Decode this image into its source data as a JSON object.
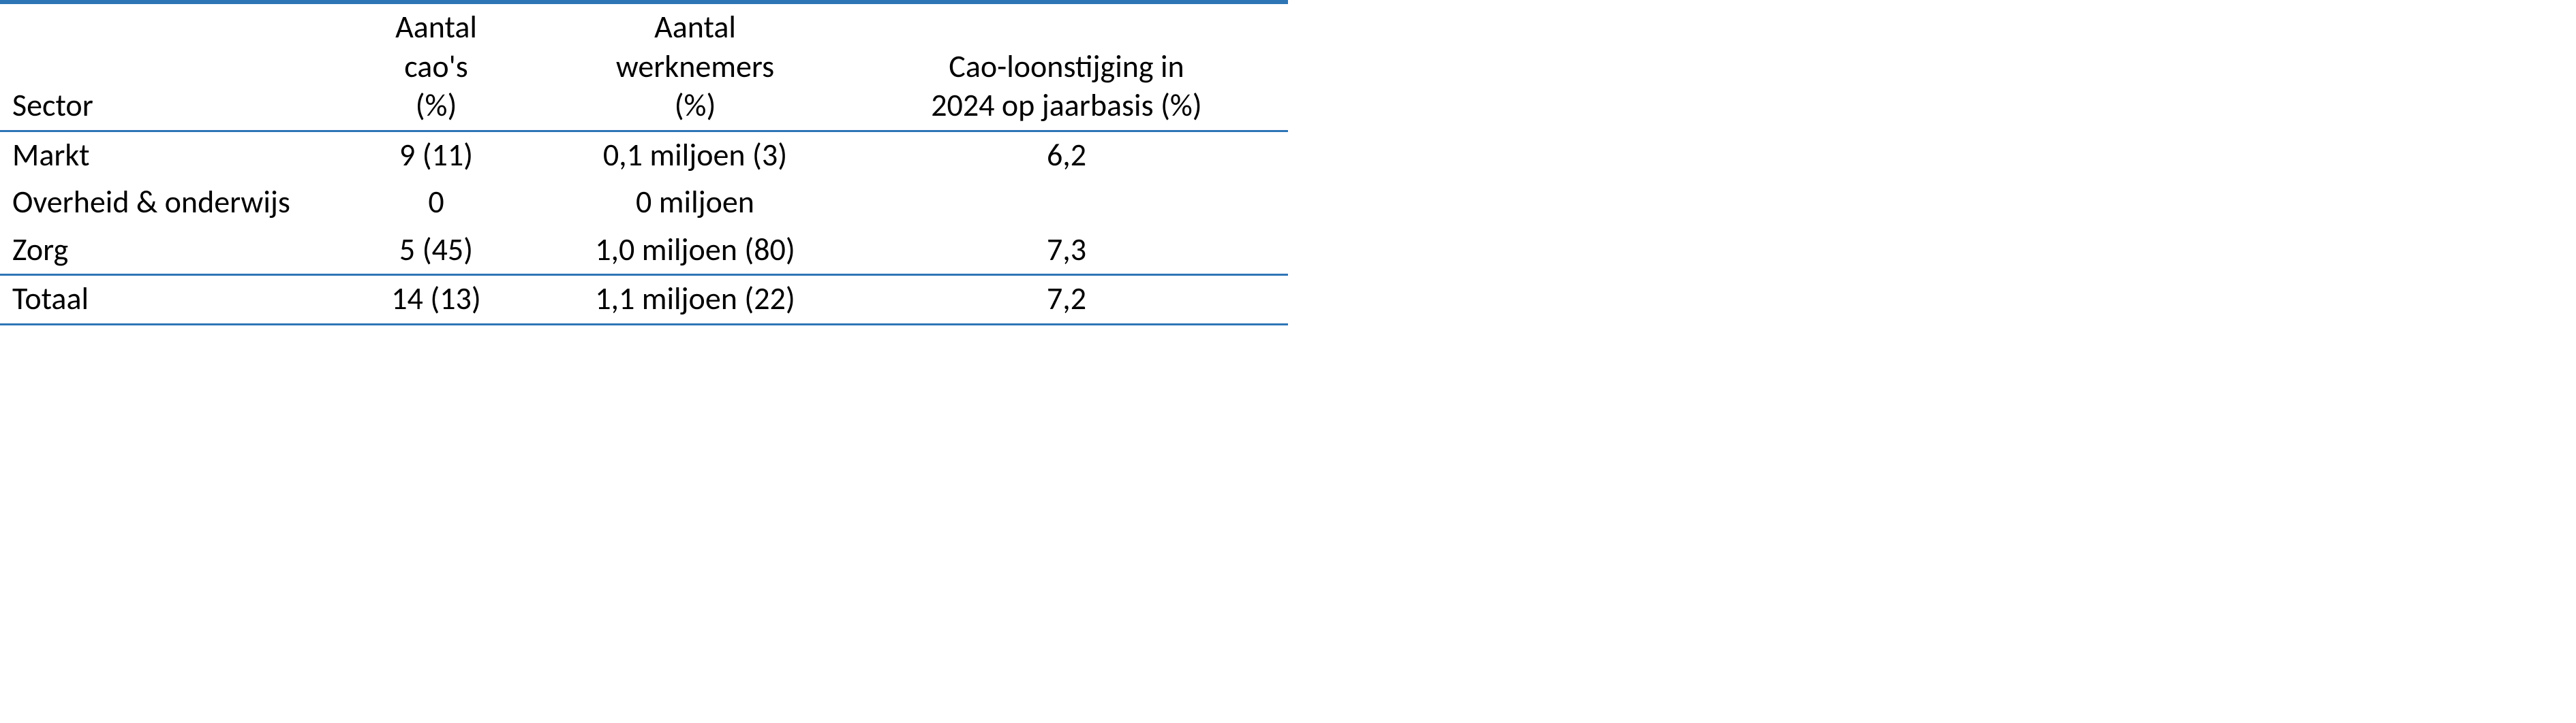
{
  "table": {
    "rule_color": "#2e75b6",
    "background_color": "#ffffff",
    "text_color": "#000000",
    "font_family": "Calibri",
    "font_size_pt": 11,
    "columns": [
      {
        "key": "sector",
        "align": "left",
        "header_lines": [
          "",
          "",
          "Sector"
        ]
      },
      {
        "key": "aantal_caos",
        "align": "center",
        "header_lines": [
          "Aantal",
          "cao's",
          "(%)"
        ]
      },
      {
        "key": "aantal_werknemers",
        "align": "center",
        "header_lines": [
          "Aantal",
          "werknemers",
          "(%)"
        ]
      },
      {
        "key": "loonstijging",
        "align": "center",
        "header_lines": [
          "",
          "Cao-loonstijging in",
          "2024 op jaarbasis (%)"
        ]
      }
    ],
    "rows": [
      {
        "sector": "Markt",
        "aantal_caos": "9 (11)",
        "aantal_werknemers": "0,1 miljoen (3)",
        "loonstijging": "6,2"
      },
      {
        "sector": "Overheid & onderwijs",
        "aantal_caos": "0",
        "aantal_werknemers": "0 miljoen",
        "loonstijging": ""
      },
      {
        "sector": "Zorg",
        "aantal_caos": "5 (45)",
        "aantal_werknemers": "1,0 miljoen (80)",
        "loonstijging": "7,3"
      }
    ],
    "total": {
      "sector": "Totaal",
      "aantal_caos": "14 (13)",
      "aantal_werknemers": "1,1 miljoen (22)",
      "loonstijging": "7,2"
    }
  }
}
